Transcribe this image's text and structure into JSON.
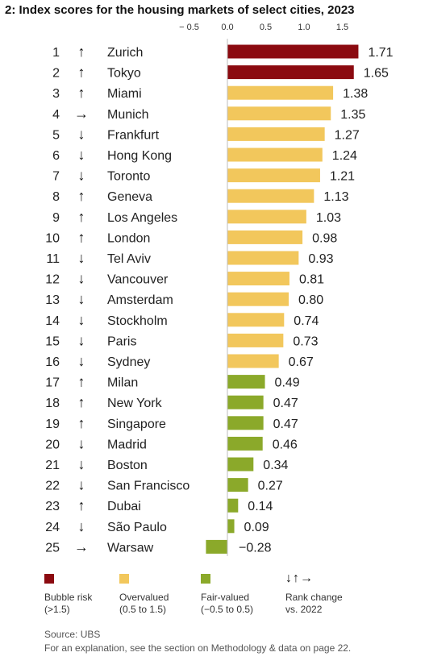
{
  "title": "2: Index scores for the housing markets of select cities, 2023",
  "chart_data": {
    "type": "bar",
    "orientation": "horizontal",
    "title": "2: Index scores for the housing markets of select cities, 2023",
    "xlim": [
      -0.5,
      1.7
    ],
    "x_ticks": [
      "− 0.5",
      "0.0",
      "0.5",
      "1.0",
      "1.5"
    ],
    "x_tick_values": [
      -0.5,
      0.0,
      0.5,
      1.0,
      1.5
    ],
    "grid": false,
    "rows": [
      {
        "rank": "1",
        "change": "up",
        "city": "Zurich",
        "value": 1.71,
        "label": "1.71",
        "category": "bubble"
      },
      {
        "rank": "2",
        "change": "up",
        "city": "Tokyo",
        "value": 1.65,
        "label": "1.65",
        "category": "bubble"
      },
      {
        "rank": "3",
        "change": "up",
        "city": "Miami",
        "value": 1.38,
        "label": "1.38",
        "category": "over"
      },
      {
        "rank": "4",
        "change": "right",
        "city": "Munich",
        "value": 1.35,
        "label": "1.35",
        "category": "over"
      },
      {
        "rank": "5",
        "change": "down",
        "city": "Frankfurt",
        "value": 1.27,
        "label": "1.27",
        "category": "over"
      },
      {
        "rank": "6",
        "change": "down",
        "city": "Hong Kong",
        "value": 1.24,
        "label": "1.24",
        "category": "over"
      },
      {
        "rank": "7",
        "change": "down",
        "city": "Toronto",
        "value": 1.21,
        "label": "1.21",
        "category": "over"
      },
      {
        "rank": "8",
        "change": "up",
        "city": "Geneva",
        "value": 1.13,
        "label": "1.13",
        "category": "over"
      },
      {
        "rank": "9",
        "change": "up",
        "city": "Los Angeles",
        "value": 1.03,
        "label": "1.03",
        "category": "over"
      },
      {
        "rank": "10",
        "change": "up",
        "city": "London",
        "value": 0.98,
        "label": "0.98",
        "category": "over"
      },
      {
        "rank": "11",
        "change": "down",
        "city": "Tel Aviv",
        "value": 0.93,
        "label": "0.93",
        "category": "over"
      },
      {
        "rank": "12",
        "change": "down",
        "city": "Vancouver",
        "value": 0.81,
        "label": "0.81",
        "category": "over"
      },
      {
        "rank": "13",
        "change": "down",
        "city": "Amsterdam",
        "value": 0.8,
        "label": "0.80",
        "category": "over"
      },
      {
        "rank": "14",
        "change": "down",
        "city": "Stockholm",
        "value": 0.74,
        "label": "0.74",
        "category": "over"
      },
      {
        "rank": "15",
        "change": "down",
        "city": "Paris",
        "value": 0.73,
        "label": "0.73",
        "category": "over"
      },
      {
        "rank": "16",
        "change": "down",
        "city": "Sydney",
        "value": 0.67,
        "label": "0.67",
        "category": "over"
      },
      {
        "rank": "17",
        "change": "up",
        "city": "Milan",
        "value": 0.49,
        "label": "0.49",
        "category": "fair"
      },
      {
        "rank": "18",
        "change": "up",
        "city": "New York",
        "value": 0.47,
        "label": "0.47",
        "category": "fair"
      },
      {
        "rank": "19",
        "change": "up",
        "city": "Singapore",
        "value": 0.47,
        "label": "0.47",
        "category": "fair"
      },
      {
        "rank": "20",
        "change": "down",
        "city": "Madrid",
        "value": 0.46,
        "label": "0.46",
        "category": "fair"
      },
      {
        "rank": "21",
        "change": "down",
        "city": "Boston",
        "value": 0.34,
        "label": "0.34",
        "category": "fair"
      },
      {
        "rank": "22",
        "change": "down",
        "city": "San Francisco",
        "value": 0.27,
        "label": "0.27",
        "category": "fair"
      },
      {
        "rank": "23",
        "change": "up",
        "city": "Dubai",
        "value": 0.14,
        "label": "0.14",
        "category": "fair"
      },
      {
        "rank": "24",
        "change": "down",
        "city": "São Paulo",
        "value": 0.09,
        "label": "0.09",
        "category": "fair"
      },
      {
        "rank": "25",
        "change": "right",
        "city": "Warsaw",
        "value": -0.28,
        "label": "−0.28",
        "category": "fair"
      }
    ],
    "colors": {
      "bubble": "#8b0a10",
      "over": "#f2c75c",
      "fair": "#8ba92a"
    },
    "arrow_glyphs": {
      "up": "↑",
      "down": "↓",
      "right": "→"
    }
  },
  "legend": {
    "bubble": {
      "label": "Bubble risk",
      "range": "(>1.5)",
      "color": "#8b0a10"
    },
    "over": {
      "label": "Overvalued",
      "range": "(0.5 to 1.5)",
      "color": "#f2c75c"
    },
    "fair": {
      "label": "Fair-valued",
      "range": "(−0.5 to 0.5)",
      "color": "#8ba92a"
    },
    "rank": {
      "arrows": "↓↑→",
      "label": "Rank change",
      "range": "vs. 2022"
    }
  },
  "footer": {
    "source": "Source: UBS",
    "note": "For an explanation, see the section on Methodology & data on page 22."
  }
}
